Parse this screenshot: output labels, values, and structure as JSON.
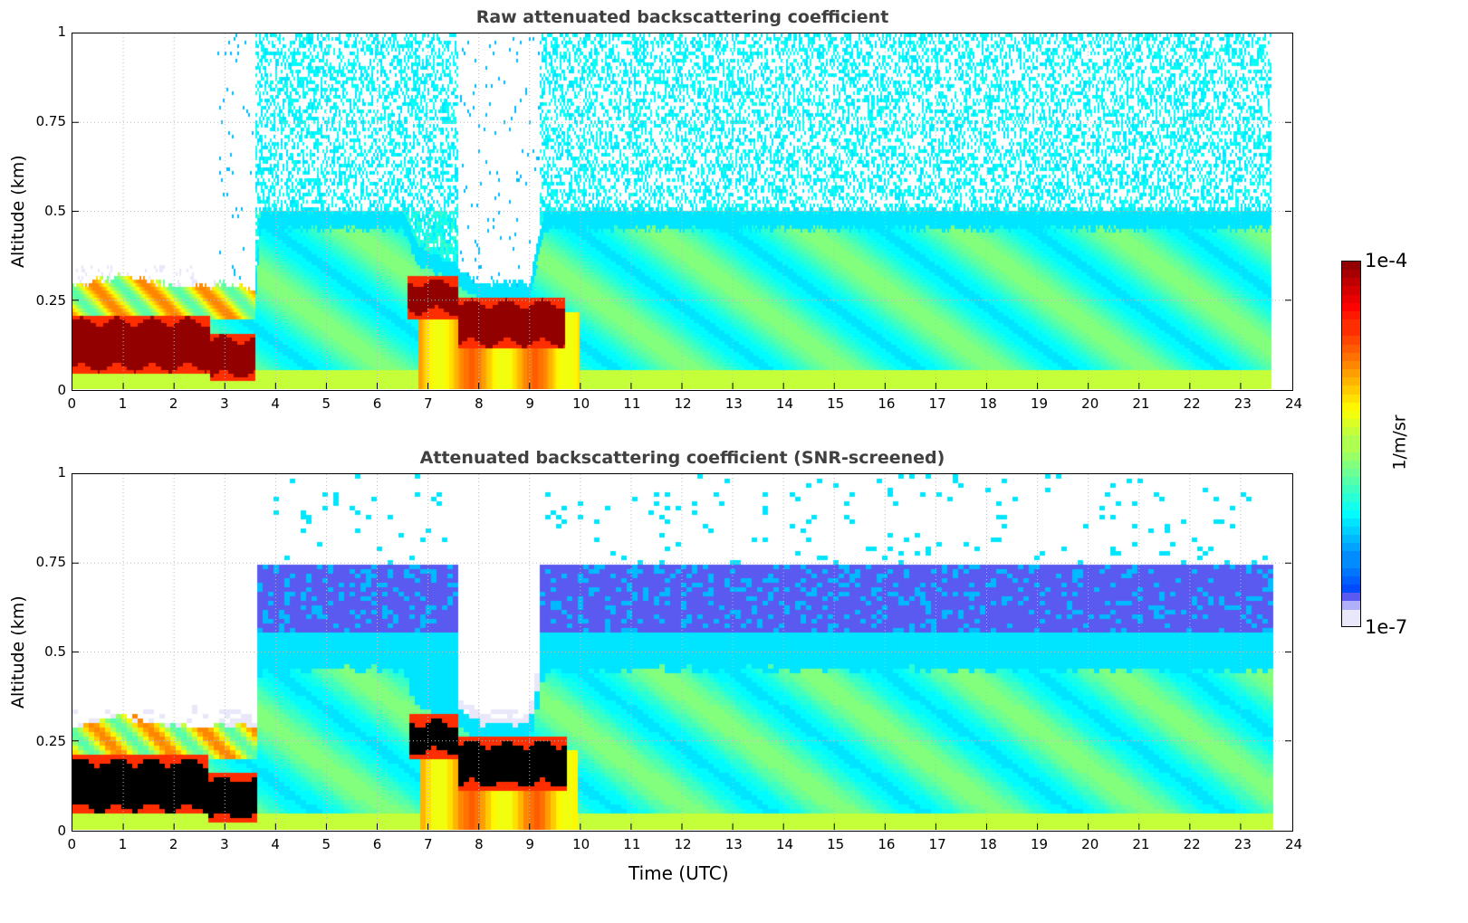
{
  "chart_data": [
    {
      "type": "heatmap",
      "title": "Raw attenuated backscattering coefficient",
      "xlabel": "",
      "ylabel": "Altitude (km)",
      "xlim": [
        0,
        24
      ],
      "ylim": [
        0,
        1
      ],
      "xticks": [
        "0",
        "1",
        "2",
        "3",
        "4",
        "5",
        "6",
        "7",
        "8",
        "9",
        "10",
        "11",
        "12",
        "13",
        "14",
        "15",
        "16",
        "17",
        "18",
        "19",
        "20",
        "21",
        "22",
        "23",
        "24"
      ],
      "yticks": [
        "0",
        "0.25",
        "0.5",
        "0.75",
        "1"
      ],
      "grid": true,
      "screened": false
    },
    {
      "type": "heatmap",
      "title": "Attenuated backscattering coefficient (SNR-screened)",
      "xlabel": "Time (UTC)",
      "ylabel": "Altitude (km)",
      "xlim": [
        0,
        24
      ],
      "ylim": [
        0,
        1
      ],
      "xticks": [
        "0",
        "1",
        "2",
        "3",
        "4",
        "5",
        "6",
        "7",
        "8",
        "9",
        "10",
        "11",
        "12",
        "13",
        "14",
        "15",
        "16",
        "17",
        "18",
        "19",
        "20",
        "21",
        "22",
        "23",
        "24"
      ],
      "yticks": [
        "0",
        "0.25",
        "0.5",
        "0.75",
        "1"
      ],
      "grid": true,
      "screened": true
    }
  ],
  "field": {
    "data_end_hour": 23.6,
    "aerosol_top_km": [
      [
        0,
        0.29
      ],
      [
        1,
        0.32
      ],
      [
        2,
        0.29
      ],
      [
        2.8,
        0.29
      ],
      [
        3.0,
        0.3
      ],
      [
        3.6,
        0.28
      ],
      [
        3.7,
        0.5
      ],
      [
        6.5,
        0.5
      ],
      [
        6.8,
        0.4
      ],
      [
        7.5,
        0.35
      ],
      [
        8.0,
        0.3
      ],
      [
        9.0,
        0.3
      ],
      [
        9.3,
        0.5
      ],
      [
        23.6,
        0.5
      ]
    ],
    "clear_gaps_hours": [
      [
        2.85,
        3.6
      ],
      [
        7.6,
        9.2
      ]
    ],
    "dense_layers": [
      {
        "t_start": 0,
        "t_end": 2.7,
        "bottom_km": 0.06,
        "top_km": 0.19
      },
      {
        "t_start": 2.7,
        "t_end": 3.6,
        "bottom_km": 0.04,
        "top_km": 0.14
      },
      {
        "t_start": 6.6,
        "t_end": 7.6,
        "bottom_km": 0.22,
        "top_km": 0.3
      },
      {
        "t_start": 7.6,
        "t_end": 9.7,
        "bottom_km": 0.13,
        "top_km": 0.24
      }
    ],
    "log_value_range": [
      -7,
      -4
    ]
  },
  "colorbar": {
    "label": "1/m/sr",
    "max_label": "1e-4",
    "min_label": "1e-7"
  }
}
